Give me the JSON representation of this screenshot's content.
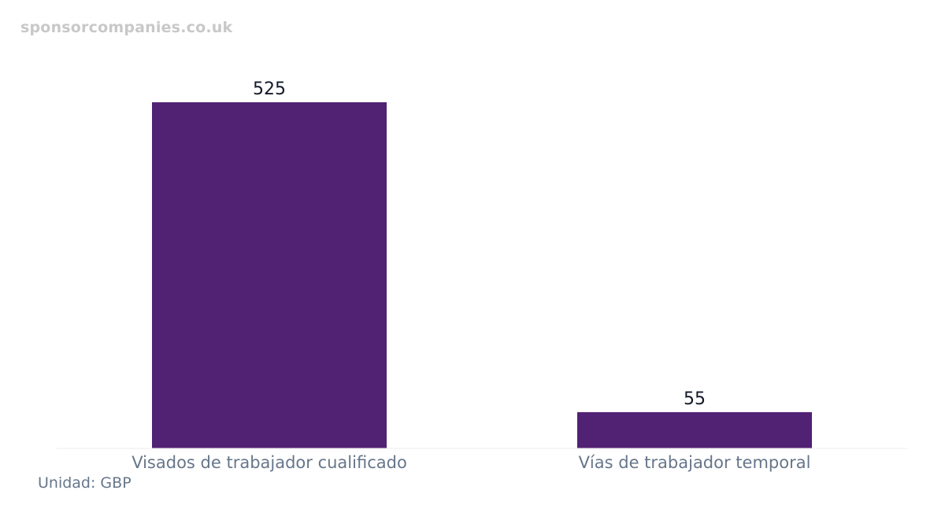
{
  "watermark": "sponsorcompanies.co.uk",
  "unit_label": "Unidad: GBP",
  "colors": {
    "bar": "#512174",
    "label": "#66768a",
    "value": "#111827"
  },
  "chart_data": {
    "type": "bar",
    "categories": [
      "Visados de trabajador cualificado",
      "Vías de trabajador temporal"
    ],
    "values": [
      525,
      55
    ],
    "ylim": [
      0,
      525
    ],
    "grid": false,
    "legend": "none"
  }
}
